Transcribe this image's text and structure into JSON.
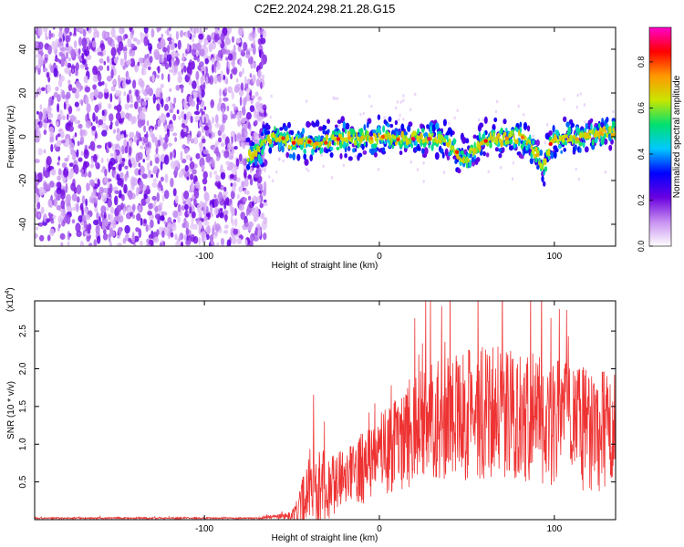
{
  "title": "C2E2.2024.298.21.28.G15",
  "chart_data": [
    {
      "type": "heatmap",
      "xlabel": "Height of straight line (km)",
      "ylabel": "Frequency (Hz)",
      "xlim": [
        -197,
        135
      ],
      "ylim": [
        -50,
        50
      ],
      "x_ticks": [
        -100,
        0,
        100
      ],
      "x_tick_labels": [
        "-100",
        "0",
        "100"
      ],
      "y_ticks": [
        -40,
        -20,
        0,
        20,
        40
      ],
      "y_tick_labels": [
        "-40",
        "-20",
        "0",
        "20",
        "40"
      ],
      "noise_region_x": [
        -197,
        -65
      ],
      "trace_x": [
        -75,
        -68,
        -60,
        -50,
        -40,
        -30,
        -20,
        -10,
        0,
        10,
        20,
        30,
        40,
        45,
        50,
        60,
        70,
        80,
        85,
        90,
        94,
        98,
        105,
        115,
        125,
        135
      ],
      "trace_y": [
        -10,
        -5,
        0,
        -3,
        -3,
        -2,
        -1,
        -1,
        0,
        -1,
        0,
        -1,
        -3,
        -8,
        -10,
        -1,
        -1,
        0,
        -3,
        -8,
        -14,
        -3,
        -1,
        0,
        1,
        2
      ],
      "colorbar": {
        "label": "Normalized spectral amplitude",
        "range": [
          0,
          0.95
        ],
        "ticks": [
          0.0,
          0.2,
          0.4,
          0.6,
          0.8
        ],
        "tick_labels": [
          "0.0",
          "0.2",
          "0.4",
          "0.6",
          "0.8"
        ],
        "colors": [
          "#ffffff",
          "#c890f0",
          "#6a00e0",
          "#0000ff",
          "#00c8ff",
          "#00e070",
          "#c8e600",
          "#ff9900",
          "#ff0000",
          "#ff00cc"
        ]
      }
    },
    {
      "type": "line",
      "xlabel": "Height of straight line (km)",
      "ylabel": "SNR (10 * v/v)",
      "scale_label": "(x10",
      "scale_exponent": "4",
      "scale_label_end": ")",
      "xlim": [
        -197,
        135
      ],
      "ylim": [
        0,
        2.9
      ],
      "x_ticks": [
        -100,
        0,
        100
      ],
      "x_tick_labels": [
        "-100",
        "0",
        "100"
      ],
      "y_ticks": [
        0.5,
        1.0,
        1.5,
        2.0,
        2.5
      ],
      "y_tick_labels": [
        "0.5",
        "1.0",
        "1.5",
        "2.0",
        "2.5"
      ],
      "color": "#ee3333",
      "envelope_x": [
        -197,
        -70,
        -50,
        -45,
        -38,
        -30,
        -25,
        -15,
        -5,
        5,
        20,
        40,
        70,
        100,
        120,
        135
      ],
      "envelope_mean": [
        0.02,
        0.02,
        0.05,
        0.2,
        0.55,
        0.4,
        0.5,
        0.6,
        0.75,
        0.95,
        1.2,
        1.35,
        1.45,
        1.3,
        1.2,
        1.15
      ],
      "envelope_amp": [
        0.01,
        0.01,
        0.05,
        0.25,
        0.6,
        0.45,
        0.4,
        0.45,
        0.5,
        0.6,
        0.75,
        0.85,
        0.9,
        0.85,
        0.85,
        0.8
      ]
    }
  ]
}
